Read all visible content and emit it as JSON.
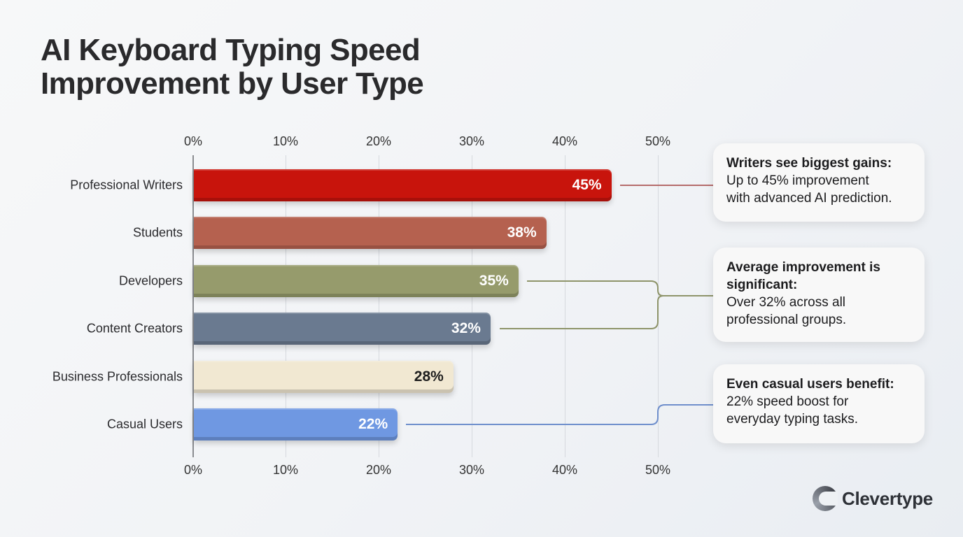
{
  "title": {
    "line1": "AI Keyboard Typing Speed",
    "line2": "Improvement by User Type"
  },
  "axis": {
    "ticks": [
      "0%",
      "10%",
      "20%",
      "30%",
      "40%",
      "50%"
    ]
  },
  "bars": [
    {
      "label": "Professional Writers",
      "value": 45,
      "value_label": "45%",
      "color": "#c8140c"
    },
    {
      "label": "Students",
      "value": 38,
      "value_label": "38%",
      "color": "#b5614f"
    },
    {
      "label": "Developers",
      "value": 35,
      "value_label": "35%",
      "color": "#969b6c"
    },
    {
      "label": "Content Creators",
      "value": 32,
      "value_label": "32%",
      "color": "#6a7a90"
    },
    {
      "label": "Business Professionals",
      "value": 28,
      "value_label": "28%",
      "color": "#f1e8d2"
    },
    {
      "label": "Casual Users",
      "value": 22,
      "value_label": "22%",
      "color": "#6f98e2"
    }
  ],
  "callouts": [
    {
      "heading": "Writers see biggest gains:",
      "line1": "Up to 45% improvement",
      "line2": "with advanced AI prediction.",
      "connector_color": "#b56b6b"
    },
    {
      "heading": "Average improvement is significant:",
      "line1": "Over 32% across all",
      "line2": "professional groups.",
      "connector_color": "#8e946a"
    },
    {
      "heading": "Even casual users benefit:",
      "line1": "22% speed boost for",
      "line2": "everyday typing tasks.",
      "connector_color": "#6f8fcc"
    }
  ],
  "brand": {
    "name": "Clevertype"
  },
  "chart_data": {
    "type": "bar",
    "orientation": "horizontal",
    "title": "AI Keyboard Typing Speed Improvement by User Type",
    "categories": [
      "Professional Writers",
      "Students",
      "Developers",
      "Content Creators",
      "Business Professionals",
      "Casual Users"
    ],
    "values": [
      45,
      38,
      35,
      32,
      28,
      22
    ],
    "value_labels": [
      "45%",
      "38%",
      "35%",
      "32%",
      "28%",
      "22%"
    ],
    "xlabel": "",
    "ylabel": "",
    "xlim": [
      0,
      50
    ],
    "x_ticks": [
      "0%",
      "10%",
      "20%",
      "30%",
      "40%",
      "50%"
    ],
    "x_ticks_position": "top and bottom",
    "grid": true,
    "annotations": [
      "Writers see biggest gains: Up to 45% improvement with advanced AI prediction.",
      "Average improvement is significant: Over 32% across all professional groups.",
      "Even casual users benefit: 22% speed boost for everyday typing tasks."
    ]
  }
}
